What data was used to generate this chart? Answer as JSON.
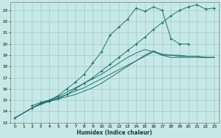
{
  "xlabel": "Humidex (Indice chaleur)",
  "bg_color": "#c6e8e6",
  "grid_color": "#a0c8c8",
  "line_color": "#1a6e6a",
  "xlim": [
    -0.5,
    23.5
  ],
  "ylim": [
    13,
    23.7
  ],
  "xticks": [
    0,
    1,
    2,
    3,
    4,
    5,
    6,
    7,
    8,
    9,
    10,
    11,
    12,
    13,
    14,
    15,
    16,
    17,
    18,
    19,
    20,
    21,
    22,
    23
  ],
  "yticks": [
    13,
    14,
    15,
    16,
    17,
    18,
    19,
    20,
    21,
    22,
    23
  ],
  "peaked_x": [
    2,
    3,
    4,
    5,
    6,
    7,
    8,
    9,
    10,
    11,
    12,
    13,
    14,
    15,
    16,
    17,
    18,
    19,
    20
  ],
  "peaked_y": [
    14.5,
    14.8,
    15.0,
    15.4,
    16.0,
    16.6,
    17.3,
    18.3,
    19.3,
    20.8,
    21.5,
    22.2,
    23.2,
    22.9,
    23.3,
    23.0,
    20.5,
    20.0,
    20.0
  ],
  "line1_x": [
    0,
    2,
    3,
    4,
    5,
    6,
    7,
    8,
    9,
    10,
    11,
    12,
    13,
    14,
    15,
    16,
    17,
    18,
    19,
    20,
    21,
    22,
    23
  ],
  "line1_y": [
    13.4,
    14.3,
    14.7,
    14.9,
    15.1,
    15.5,
    16.0,
    16.5,
    17.0,
    17.6,
    18.2,
    18.8,
    19.4,
    20.0,
    20.6,
    21.3,
    21.9,
    22.5,
    23.0,
    23.3,
    23.5,
    23.1,
    23.2
  ],
  "line2_x": [
    0,
    2,
    3,
    4,
    5,
    6,
    7,
    8,
    9,
    10,
    11,
    12,
    13,
    14,
    15,
    16,
    17,
    18,
    19,
    20,
    21,
    22,
    23
  ],
  "line2_y": [
    13.4,
    14.3,
    14.6,
    14.9,
    15.1,
    15.3,
    15.5,
    15.8,
    16.1,
    16.5,
    17.0,
    17.5,
    18.0,
    18.5,
    19.0,
    19.4,
    19.0,
    18.8,
    18.8,
    18.8,
    18.8,
    18.8,
    18.8
  ],
  "line3_x": [
    0,
    2,
    3,
    4,
    5,
    6,
    7,
    8,
    9,
    10,
    11,
    12,
    13,
    14,
    15,
    16,
    17,
    18,
    19,
    20,
    21,
    22,
    23
  ],
  "line3_y": [
    13.4,
    14.3,
    14.7,
    14.95,
    15.2,
    15.5,
    15.8,
    16.1,
    16.5,
    16.9,
    17.3,
    17.7,
    18.1,
    18.5,
    18.9,
    19.3,
    19.0,
    19.0,
    19.0,
    18.9,
    18.9,
    18.8,
    18.8
  ],
  "line4_x": [
    0,
    2,
    3,
    4,
    5,
    6,
    7,
    8,
    9,
    10,
    11,
    12,
    13,
    14,
    15,
    16,
    17,
    18,
    19,
    20,
    21,
    22,
    23
  ],
  "line4_y": [
    13.4,
    14.3,
    14.7,
    15.0,
    15.3,
    15.7,
    16.1,
    16.5,
    16.9,
    17.3,
    17.8,
    18.3,
    18.8,
    19.2,
    19.5,
    19.3,
    19.1,
    19.0,
    18.9,
    18.9,
    18.9,
    18.8,
    18.8
  ]
}
